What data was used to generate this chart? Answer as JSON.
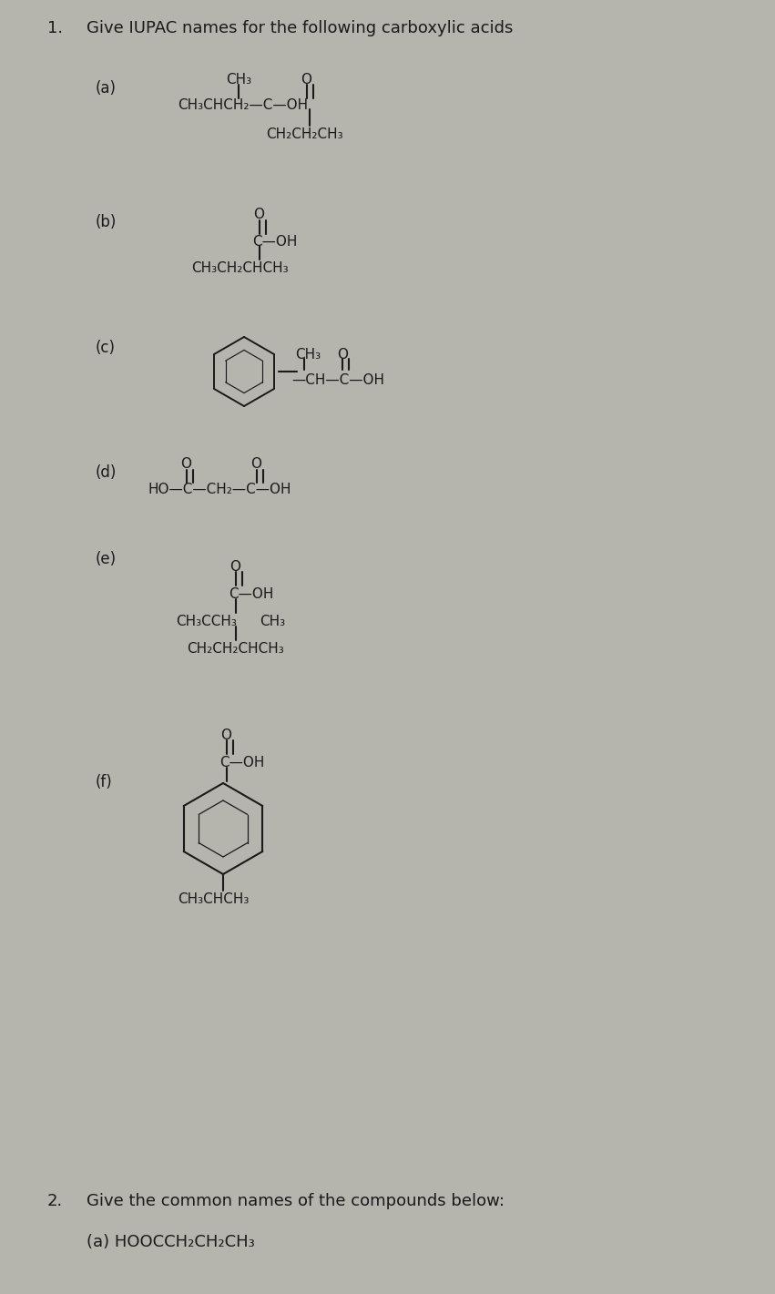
{
  "bg_color": "#b5b5ad",
  "text_color": "#1a1a1a",
  "header1_num": "1.",
  "header1_text": "Give IUPAC names for the following carboxylic acids",
  "header2_num": "2.",
  "header2_text": "Give the common names of the compounds below:",
  "section2_a": "(a) HOOCCH₂CH₂CH₃",
  "fs_main": 13,
  "fs_chem": 12,
  "fs_small": 11
}
